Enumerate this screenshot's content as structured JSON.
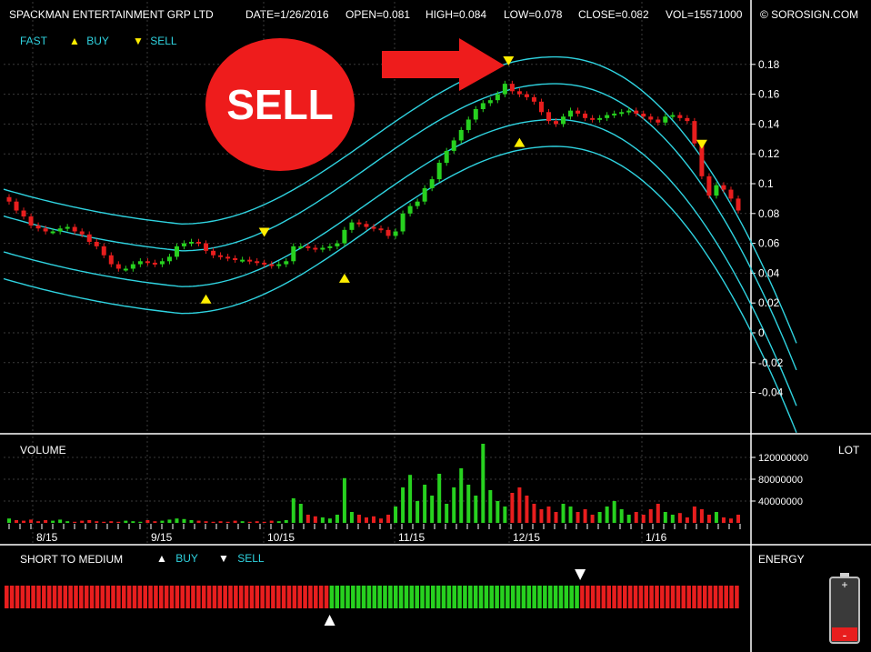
{
  "header": {
    "symbol": "SPACKMAN ENTERTAINMENT GRP LTD",
    "date": "DATE=1/26/2016",
    "open": "OPEN=0.081",
    "high": "HIGH=0.084",
    "low": "LOW=0.078",
    "close": "CLOSE=0.082",
    "volume": "VOL=15571000",
    "brand": "© SOROSIGN.COM"
  },
  "legend": {
    "fast": "FAST",
    "buy": "BUY",
    "sell": "SELL"
  },
  "annotation": {
    "sell_badge": "SELL"
  },
  "volume_panel": {
    "title": "VOLUME",
    "unit": "LOT"
  },
  "signal_panel": {
    "title": "SHORT TO MEDIUM",
    "buy": "BUY",
    "sell": "SELL",
    "energy": "ENERGY"
  },
  "colors": {
    "up": "#27d11f",
    "down": "#e81e1e",
    "channel": "#2fd3e0",
    "signal_marker": "#ffee00",
    "background": "#000000",
    "arrow": "#ee1c1c"
  },
  "chart_data": {
    "type": "candlestick",
    "price_axis": {
      "ticks": [
        0.18,
        0.16,
        0.14,
        0.12,
        0.1,
        0.08,
        0.06,
        0.04,
        0.02,
        0,
        -0.02,
        -0.04
      ],
      "tick_labels": [
        "0.18",
        "0.16",
        "0.14",
        "0.12",
        "0.1",
        "0.08",
        "0.06",
        "0.04",
        "0.02",
        "0",
        "-0.02",
        "-0.04"
      ]
    },
    "volume_axis": {
      "ticks": [
        120000000,
        80000000,
        40000000
      ],
      "tick_labels": [
        "120000000",
        "80000000",
        "40000000"
      ]
    },
    "date_labels": [
      "8/15",
      "9/15",
      "10/15",
      "11/15",
      "12/15",
      "1/16"
    ],
    "closes": [
      0.088,
      0.082,
      0.078,
      0.072,
      0.07,
      0.068,
      0.068,
      0.07,
      0.071,
      0.068,
      0.066,
      0.061,
      0.058,
      0.052,
      0.046,
      0.043,
      0.043,
      0.046,
      0.048,
      0.047,
      0.046,
      0.048,
      0.051,
      0.058,
      0.06,
      0.061,
      0.06,
      0.055,
      0.052,
      0.051,
      0.05,
      0.049,
      0.049,
      0.048,
      0.047,
      0.046,
      0.045,
      0.046,
      0.048,
      0.058,
      0.058,
      0.057,
      0.056,
      0.057,
      0.058,
      0.06,
      0.069,
      0.074,
      0.073,
      0.071,
      0.07,
      0.069,
      0.065,
      0.068,
      0.08,
      0.085,
      0.088,
      0.097,
      0.103,
      0.114,
      0.122,
      0.129,
      0.136,
      0.143,
      0.15,
      0.154,
      0.156,
      0.16,
      0.167,
      0.162,
      0.16,
      0.158,
      0.155,
      0.148,
      0.142,
      0.14,
      0.145,
      0.149,
      0.147,
      0.144,
      0.143,
      0.144,
      0.146,
      0.147,
      0.148,
      0.149,
      0.147,
      0.145,
      0.143,
      0.141,
      0.145,
      0.146,
      0.144,
      0.142,
      0.127,
      0.105,
      0.092,
      0.099,
      0.096,
      0.09,
      0.082
    ],
    "volumes": [
      8000000,
      5000000,
      4000000,
      6000000,
      3000000,
      5000000,
      4000000,
      6000000,
      3000000,
      2000000,
      4000000,
      5000000,
      3000000,
      2000000,
      3000000,
      2000000,
      4000000,
      3000000,
      2000000,
      5000000,
      3000000,
      4000000,
      6000000,
      8000000,
      7000000,
      5000000,
      4000000,
      3000000,
      2000000,
      3000000,
      2000000,
      4000000,
      3000000,
      2000000,
      3000000,
      2000000,
      4000000,
      3000000,
      5000000,
      45000000,
      35000000,
      15000000,
      12000000,
      10000000,
      8000000,
      15000000,
      82000000,
      20000000,
      15000000,
      10000000,
      12000000,
      8000000,
      15000000,
      30000000,
      65000000,
      88000000,
      40000000,
      70000000,
      50000000,
      90000000,
      35000000,
      65000000,
      100000000,
      70000000,
      50000000,
      145000000,
      60000000,
      40000000,
      30000000,
      55000000,
      65000000,
      50000000,
      35000000,
      25000000,
      30000000,
      20000000,
      35000000,
      30000000,
      20000000,
      25000000,
      15000000,
      20000000,
      30000000,
      40000000,
      25000000,
      15000000,
      20000000,
      15000000,
      25000000,
      35000000,
      20000000,
      15000000,
      18000000,
      10000000,
      30000000,
      25000000,
      15000000,
      20000000,
      10000000,
      8000000,
      15000000
    ],
    "buy_signals_at": [
      27,
      46,
      70
    ],
    "sell_signals_at": [
      35,
      66,
      95
    ],
    "short_to_medium": {
      "bars": 138,
      "green_from": 61,
      "green_to": 108
    }
  }
}
